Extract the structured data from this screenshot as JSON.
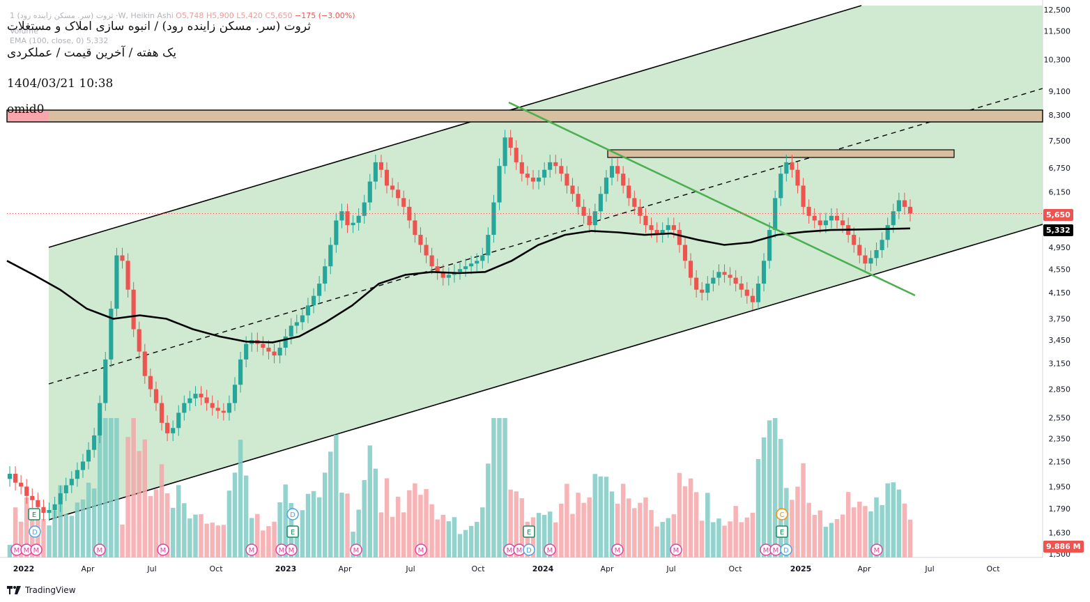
{
  "header": {
    "symbol_line": "1 ثروت (سر. مسکن زاینده رود) ·W, Heikin Ashi",
    "ohlc": {
      "o_label": "O",
      "o": "5,748",
      "h_label": "H",
      "h": "5,900",
      "l_label": "L",
      "l": "5,420",
      "c_label": "C",
      "c": "5,650",
      "change": "−175 (−3.00%)"
    },
    "volume_label": "Volume",
    "ema_label": "EMA (100, close, 0)",
    "ema_value": "5,332"
  },
  "annotations": {
    "title": "ثروت (سر. مسکن زاینده رود) / انبوه سازی املاک و مستغلات",
    "subtitle": "یک هفته / آخرین قیمت / عملکردی",
    "datetime": "1404/03/21 10:38",
    "author": "omid0"
  },
  "price_labels": {
    "last_price": "5,650",
    "ema_price": "5,332",
    "volume": "9.886 M"
  },
  "colors": {
    "up": "#26a69a",
    "down": "#ef5350",
    "channel": "#c8e6c9",
    "ema": "#000000",
    "trend": "#4caf50",
    "zone_red": "#f8a5ab",
    "zone_brown": "#d7bfa0"
  },
  "chart_data": {
    "type": "candlestick",
    "yscale": "log",
    "ylim": [
      1500,
      12500
    ],
    "y_ticks": [
      12500,
      11500,
      10300,
      9100,
      8300,
      7500,
      6750,
      6150,
      5650,
      4950,
      4550,
      4150,
      3750,
      3450,
      3150,
      2850,
      2550,
      2350,
      2150,
      1950,
      1790,
      1630,
      1500
    ],
    "y_tick_labels": [
      "12,500",
      "11,500",
      "10,300",
      "9,100",
      "8,300",
      "7,500",
      "6,750",
      "6,150",
      "5,650",
      "4,950",
      "4,550",
      "4,150",
      "3,750",
      "3,450",
      "3,150",
      "2,850",
      "2,550",
      "2,350",
      "2,150",
      "1,950",
      "1,790",
      "1,630",
      "1,500"
    ],
    "x_ticks": [
      "2022",
      "Apr",
      "Jul",
      "Oct",
      "2023",
      "Apr",
      "Jul",
      "Oct",
      "2024",
      "Apr",
      "Jul",
      "Oct",
      "2025",
      "Apr",
      "Jul",
      "Oct"
    ],
    "candles_close": [
      2050,
      1980,
      1950,
      1880,
      1850,
      1800,
      1760,
      1780,
      1820,
      1900,
      1960,
      2010,
      2080,
      2150,
      2250,
      2380,
      2700,
      3200,
      3900,
      4800,
      4700,
      4200,
      3600,
      3300,
      3000,
      2850,
      2700,
      2500,
      2400,
      2450,
      2600,
      2700,
      2750,
      2800,
      2760,
      2700,
      2650,
      2620,
      2600,
      2700,
      2900,
      3200,
      3400,
      3450,
      3400,
      3350,
      3300,
      3250,
      3350,
      3500,
      3650,
      3700,
      3800,
      3950,
      4100,
      4300,
      4600,
      5000,
      5500,
      5700,
      5400,
      5450,
      5600,
      5900,
      6400,
      6900,
      6700,
      6300,
      6200,
      6000,
      5800,
      5500,
      5200,
      5000,
      4800,
      4600,
      4500,
      4400,
      4450,
      4500,
      4550,
      4600,
      4650,
      4700,
      4800,
      5200,
      5900,
      6800,
      7600,
      7300,
      6900,
      6600,
      6500,
      6400,
      6500,
      6700,
      6900,
      6800,
      6600,
      6300,
      6100,
      5800,
      5600,
      5400,
      5700,
      6100,
      6500,
      6800,
      6600,
      6300,
      6000,
      5800,
      5600,
      5400,
      5300,
      5200,
      5300,
      5400,
      5300,
      5000,
      4700,
      4400,
      4200,
      4150,
      4300,
      4400,
      4500,
      4450,
      4400,
      4300,
      4200,
      4100,
      4000,
      4300,
      4700,
      5300,
      6000,
      6600,
      6900,
      6700,
      6300,
      5800,
      5600,
      5500,
      5400,
      5500,
      5600,
      5500,
      5400,
      5200,
      5000,
      4800,
      4650,
      4750,
      4900,
      5100,
      5400,
      5700,
      5950,
      5800,
      5650
    ],
    "ema_100": [
      4700,
      4450,
      4200,
      3900,
      3750,
      3800,
      3750,
      3600,
      3500,
      3430,
      3420,
      3500,
      3700,
      3950,
      4300,
      4450,
      4500,
      4480,
      4500,
      4700,
      5000,
      5200,
      5280,
      5250,
      5200,
      5230,
      5100,
      5000,
      5050,
      5200,
      5260,
      5300,
      5310,
      5320,
      5332
    ],
    "volume_scale": "relative",
    "trend_lines": [
      "ascending channel upper",
      "ascending channel lower",
      "channel midline (dashed)",
      "descending green trendline"
    ],
    "zones": [
      "resistance 8,100–8,500",
      "resistance 7,050–7,300"
    ]
  }
}
